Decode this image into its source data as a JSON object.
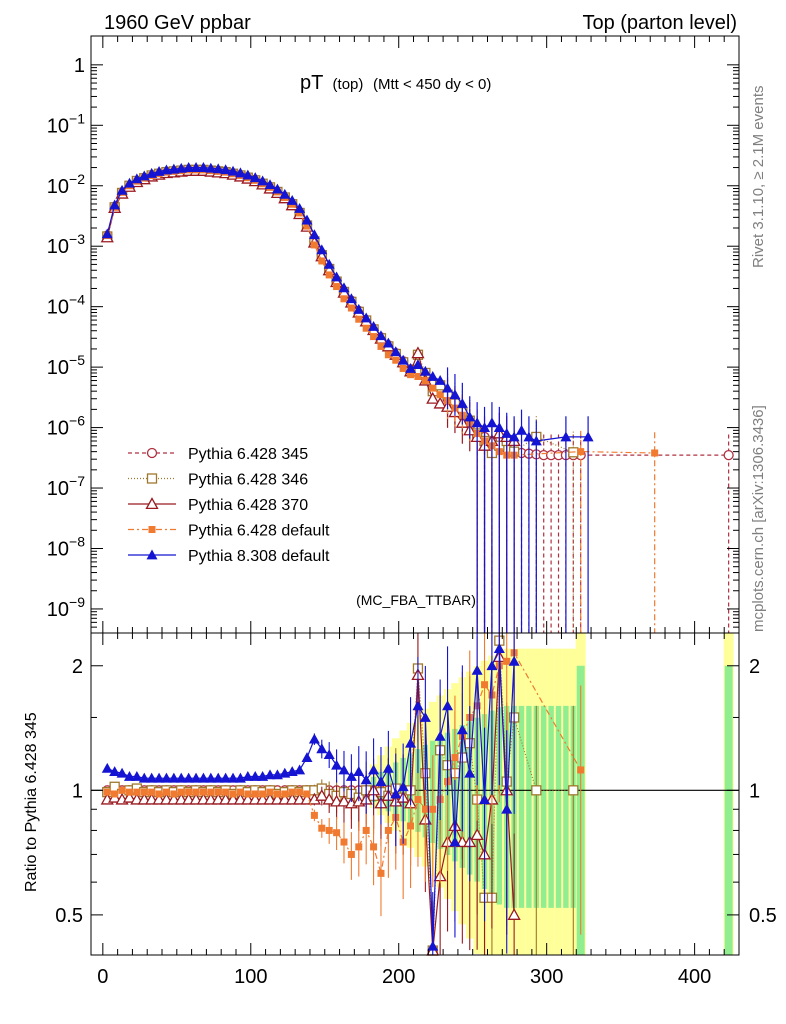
{
  "header": {
    "left": "1960 GeV ppbar",
    "right": "Top (parton level)"
  },
  "side_labels": {
    "rivet": "Rivet 3.1.10, ≥ 2.1M events",
    "source": "mcplots.cern.ch [arXiv:1306.3436]"
  },
  "analysis_tag": "(MC_FBA_TTBAR)",
  "chart_data": [
    {
      "type": "line",
      "title_main": "pT",
      "title_sub1": "(top)",
      "title_sub2": "(Mtt < 450 dy < 0)",
      "yscale": "log",
      "ylim": [
        4e-10,
        3
      ],
      "xlim": [
        -8,
        430
      ],
      "y_tick_labels": [
        "1",
        "10",
        "10",
        "10",
        "10",
        "10",
        "10",
        "10",
        "10",
        "10"
      ],
      "y_tick_exponents": [
        "",
        "−1",
        "−2",
        "−3",
        "−4",
        "−5",
        "−6",
        "−7",
        "−8",
        "−9"
      ],
      "legend_position": "middle-left",
      "series": [
        {
          "name": "Pythia 6.428 345",
          "color": "#b03040",
          "marker": "open-circle",
          "dash": "4,3",
          "x": [
            3,
            8,
            13,
            18,
            23,
            28,
            33,
            38,
            43,
            48,
            53,
            58,
            63,
            68,
            73,
            78,
            83,
            88,
            93,
            98,
            103,
            108,
            113,
            118,
            123,
            128,
            133,
            138,
            143,
            148,
            153,
            158,
            163,
            168,
            173,
            178,
            183,
            188,
            193,
            198,
            203,
            208,
            213,
            218,
            223,
            228,
            233,
            238,
            243,
            248,
            253,
            258,
            263,
            268,
            273,
            278,
            283,
            288,
            293,
            298,
            303,
            308,
            313,
            318,
            323,
            423
          ],
          "y": [
            0.0015,
            0.0045,
            0.0078,
            0.01,
            0.012,
            0.0135,
            0.015,
            0.016,
            0.017,
            0.0175,
            0.018,
            0.0185,
            0.0185,
            0.0185,
            0.018,
            0.0175,
            0.017,
            0.016,
            0.015,
            0.0138,
            0.0125,
            0.011,
            0.0095,
            0.008,
            0.0065,
            0.005,
            0.0036,
            0.0022,
            0.0012,
            0.0007,
            0.00042,
            0.00027,
            0.00018,
            0.000125,
            8.5e-05,
            6e-05,
            4.3e-05,
            3.1e-05,
            2.3e-05,
            1.7e-05,
            1.25e-05,
            9.2e-06,
            8.8e-06,
            7e-06,
            5.2e-06,
            4e-06,
            3e-06,
            2.2e-06,
            1.6e-06,
            1.2e-06,
            9e-07,
            7e-07,
            6e-07,
            5e-07,
            4.5e-07,
            4e-07,
            3.8e-07,
            3.7e-07,
            3.6e-07,
            3.5e-07,
            3.5e-07,
            3.5e-07,
            3.5e-07,
            3.5e-07,
            3.5e-07,
            3.5e-07
          ],
          "ratio": [
            1.0,
            1.0,
            1.0,
            1.0,
            1.0,
            1.0,
            1.0,
            1.0,
            1.0,
            1.0,
            1.0,
            1.0,
            1.0,
            1.0,
            1.0,
            1.0,
            1.0,
            1.0,
            1.0,
            1.0,
            1.0,
            1.0,
            1.0,
            1.0,
            1.0,
            1.0,
            1.0,
            1.0,
            1.0,
            1.0,
            1.0,
            1.0,
            1.0,
            1.0,
            1.0,
            1.0,
            1.0,
            1.0,
            1.0,
            1.0,
            1.0,
            1.0,
            1.0,
            1.0,
            1.0,
            1.0,
            1.0,
            1.0,
            1.0,
            1.0,
            1.0,
            1.0,
            1.0,
            1.0,
            1.0,
            1.0,
            1.0,
            1.0,
            1.0,
            1.0,
            1.0,
            1.0,
            1.0,
            1.0,
            1.0,
            1.0
          ]
        },
        {
          "name": "Pythia 6.428 346",
          "color": "#a0782c",
          "marker": "open-square",
          "dash": "1,2",
          "x": [
            3,
            8,
            13,
            18,
            23,
            28,
            33,
            38,
            43,
            48,
            53,
            58,
            63,
            68,
            73,
            78,
            83,
            88,
            93,
            98,
            103,
            108,
            113,
            118,
            123,
            128,
            133,
            138,
            143,
            148,
            153,
            158,
            163,
            168,
            173,
            178,
            183,
            188,
            193,
            198,
            203,
            208,
            213,
            218,
            223,
            228,
            233,
            238,
            243,
            248,
            253,
            258,
            263,
            268,
            273,
            278,
            293,
            318
          ],
          "y": [
            0.00145,
            0.0044,
            0.0076,
            0.01,
            0.012,
            0.0133,
            0.0148,
            0.0158,
            0.0168,
            0.0173,
            0.0178,
            0.0183,
            0.0183,
            0.0183,
            0.0178,
            0.0173,
            0.0168,
            0.0158,
            0.0148,
            0.0136,
            0.0123,
            0.0108,
            0.0094,
            0.0079,
            0.0064,
            0.00495,
            0.00355,
            0.0022,
            0.0012,
            0.00071,
            0.00042,
            0.00026,
            0.000175,
            0.00012,
            8.2e-05,
            5.9e-05,
            4.2e-05,
            3e-05,
            2.2e-05,
            1.65e-05,
            1.2e-05,
            9e-06,
            1.6e-05,
            8e-06,
            4e-06,
            5e-06,
            3.5e-06,
            2.5e-06,
            1.8e-06,
            1.3e-06,
            8e-07,
            6e-07,
            3.8e-07,
            5e-07,
            6e-07,
            4e-07,
            7e-07,
            3.9e-07
          ],
          "ratio": [
            0.99,
            1.02,
            0.98,
            1.0,
            1.01,
            0.99,
            1.0,
            0.99,
            1.0,
            0.99,
            1.0,
            0.99,
            1.0,
            0.99,
            1.0,
            0.99,
            1.0,
            0.98,
            1.0,
            0.99,
            1.0,
            0.99,
            1.0,
            0.98,
            0.99,
            1.0,
            0.99,
            1.0,
            1.0,
            1.01,
            0.98,
            0.97,
            0.99,
            0.98,
            0.96,
            1.0,
            0.97,
            0.99,
            0.97,
            1.01,
            0.96,
            1.0,
            1.97,
            1.1,
            0.4,
            1.25,
            1.15,
            1.1,
            1.2,
            1.3,
            0.95,
            0.55,
            0.55,
            2.3,
            1.05,
            1.5,
            1.0,
            1.0
          ]
        },
        {
          "name": "Pythia 6.428 370",
          "color": "#9a1a20",
          "marker": "open-triangle",
          "dash": "",
          "x": [
            3,
            8,
            13,
            18,
            23,
            28,
            33,
            38,
            43,
            48,
            53,
            58,
            63,
            68,
            73,
            78,
            83,
            88,
            93,
            98,
            103,
            108,
            113,
            118,
            123,
            128,
            133,
            138,
            143,
            148,
            153,
            158,
            163,
            168,
            173,
            178,
            183,
            188,
            193,
            198,
            203,
            208,
            213,
            218,
            223,
            228,
            233,
            238,
            243,
            248,
            253,
            258,
            263,
            268,
            273,
            278
          ],
          "y": [
            0.0014,
            0.0043,
            0.0074,
            0.0096,
            0.0115,
            0.0128,
            0.0142,
            0.0152,
            0.0162,
            0.0166,
            0.0171,
            0.0176,
            0.0176,
            0.0176,
            0.0171,
            0.0166,
            0.0161,
            0.0152,
            0.0142,
            0.0131,
            0.0119,
            0.0105,
            0.009,
            0.0076,
            0.0062,
            0.00475,
            0.0034,
            0.0021,
            0.00115,
            0.00068,
            0.0004,
            0.000255,
            0.00017,
            0.000117,
            8e-05,
            5.7e-05,
            4.1e-05,
            2.95e-05,
            2.2e-05,
            1.6e-05,
            1.2e-05,
            8.5e-06,
            1.7e-05,
            6e-06,
            3e-06,
            2.5e-06,
            2.2e-06,
            1.8e-06,
            1.2e-06,
            9e-07,
            7e-07,
            5e-07,
            6e-07,
            8e-07,
            7e-07,
            6e-07
          ],
          "ratio": [
            0.95,
            0.96,
            0.95,
            0.96,
            0.95,
            0.95,
            0.95,
            0.95,
            0.95,
            0.95,
            0.95,
            0.95,
            0.95,
            0.95,
            0.95,
            0.95,
            0.95,
            0.95,
            0.95,
            0.95,
            0.95,
            0.95,
            0.95,
            0.95,
            0.95,
            0.95,
            0.95,
            0.95,
            0.95,
            0.97,
            0.95,
            0.94,
            0.94,
            0.93,
            0.94,
            0.95,
            1.0,
            0.93,
            0.97,
            0.94,
            0.96,
            0.93,
            1.9,
            0.85,
            0.38,
            0.62,
            0.75,
            0.82,
            0.75,
            0.75,
            0.78,
            0.7,
            0.95,
            2.1,
            1.0,
            0.5
          ]
        },
        {
          "name": "Pythia 6.428 default",
          "color": "#f07a30",
          "marker": "filled-square",
          "dash": "6,3,2,3",
          "x": [
            3,
            8,
            13,
            18,
            23,
            28,
            33,
            38,
            43,
            48,
            53,
            58,
            63,
            68,
            73,
            78,
            83,
            88,
            93,
            98,
            103,
            108,
            113,
            118,
            123,
            128,
            133,
            138,
            143,
            148,
            153,
            158,
            163,
            168,
            173,
            178,
            183,
            188,
            193,
            198,
            203,
            208,
            213,
            218,
            223,
            228,
            233,
            238,
            243,
            248,
            253,
            258,
            263,
            268,
            273,
            278,
            323,
            373
          ],
          "y": [
            0.0015,
            0.0044,
            0.0078,
            0.01,
            0.0119,
            0.0134,
            0.0148,
            0.0158,
            0.0168,
            0.0173,
            0.0178,
            0.0183,
            0.0183,
            0.0183,
            0.0178,
            0.0173,
            0.0168,
            0.0158,
            0.0148,
            0.0136,
            0.0123,
            0.0108,
            0.0094,
            0.0079,
            0.0064,
            0.00495,
            0.00355,
            0.00215,
            0.00105,
            0.00057,
            0.000335,
            0.000215,
            0.000135,
            9.5e-05,
            6.2e-05,
            4.4e-05,
            3.2e-05,
            2.2e-05,
            1.6e-05,
            1.3e-05,
            9.5e-06,
            7.5e-06,
            7e-06,
            6e-06,
            4.5e-06,
            3.5e-06,
            2.8e-06,
            2.1e-06,
            1.6e-06,
            1.2e-06,
            8e-07,
            6e-07,
            5e-07,
            4e-07,
            3.5e-07,
            3.5e-07,
            4e-07,
            3.8e-07
          ],
          "ratio": [
            0.99,
            0.98,
            1.0,
            0.99,
            0.99,
            0.99,
            0.99,
            0.98,
            0.99,
            0.98,
            0.99,
            0.99,
            0.99,
            0.99,
            0.99,
            0.99,
            0.99,
            0.98,
            0.99,
            0.98,
            0.98,
            0.98,
            0.99,
            0.98,
            0.98,
            0.99,
            0.99,
            0.98,
            0.87,
            0.81,
            0.8,
            0.79,
            0.75,
            0.7,
            0.73,
            0.8,
            0.73,
            0.63,
            0.8,
            0.86,
            0.75,
            0.82,
            0.95,
            0.9,
            0.9,
            0.95,
            1.05,
            1.2,
            1.35,
            1.5,
            1.6,
            1.8,
            1.7,
            2.0,
            2.05,
            2.15,
            1.12,
            1.0
          ]
        },
        {
          "name": "Pythia 8.308 default",
          "color": "#1414d2",
          "marker": "filled-triangle",
          "dash": "",
          "x": [
            3,
            8,
            13,
            18,
            23,
            28,
            33,
            38,
            43,
            48,
            53,
            58,
            63,
            68,
            73,
            78,
            83,
            88,
            93,
            98,
            103,
            108,
            113,
            118,
            123,
            128,
            133,
            138,
            143,
            148,
            153,
            158,
            163,
            168,
            173,
            178,
            183,
            188,
            193,
            198,
            203,
            208,
            213,
            218,
            223,
            228,
            233,
            238,
            243,
            248,
            253,
            258,
            263,
            268,
            273,
            278,
            283,
            288,
            293,
            313,
            328
          ],
          "y": [
            0.0016,
            0.0048,
            0.0084,
            0.011,
            0.013,
            0.0145,
            0.016,
            0.0172,
            0.0182,
            0.0188,
            0.0194,
            0.02,
            0.02,
            0.02,
            0.0195,
            0.019,
            0.0184,
            0.0174,
            0.0163,
            0.015,
            0.0136,
            0.012,
            0.0104,
            0.0088,
            0.0072,
            0.0057,
            0.0042,
            0.0027,
            0.00155,
            0.00087,
            0.0005,
            0.00031,
            0.000205,
            0.000135,
            9e-05,
            6.5e-05,
            4.7e-05,
            3.3e-05,
            2.5e-05,
            1.8e-05,
            1.3e-05,
            9.5e-06,
            1.1e-05,
            8.5e-06,
            7e-06,
            6e-06,
            4.5e-06,
            3.5e-06,
            2.5e-06,
            1.5e-06,
            1.2e-06,
            1e-06,
            1.2e-06,
            1e-06,
            8e-07,
            7e-07,
            9e-07,
            7e-07,
            6e-07,
            7e-07,
            7e-07
          ],
          "ratio": [
            1.13,
            1.11,
            1.1,
            1.08,
            1.08,
            1.07,
            1.07,
            1.07,
            1.07,
            1.07,
            1.07,
            1.07,
            1.07,
            1.07,
            1.07,
            1.07,
            1.07,
            1.07,
            1.07,
            1.08,
            1.08,
            1.08,
            1.09,
            1.09,
            1.1,
            1.11,
            1.12,
            1.2,
            1.33,
            1.26,
            1.22,
            1.15,
            1.12,
            1.08,
            1.11,
            1.06,
            1.12,
            1.05,
            1.13,
            0.98,
            1.02,
            1.3,
            1.6,
            1.5,
            0.42,
            1.35,
            1.6,
            0.75,
            1.4,
            1.1,
            1.95,
            0.95,
            2.0,
            2.2,
            0.9,
            2.05
          ]
        }
      ]
    },
    {
      "type": "line",
      "title": "",
      "ylabel": "Ratio to Pythia 6.428 345",
      "yscale": "log",
      "ylim": [
        0.4,
        2.4
      ],
      "xlim": [
        -8,
        430
      ],
      "y_tick_labels": [
        "0.5",
        "1",
        "2"
      ],
      "x_tick_labels": [
        "0",
        "100",
        "200",
        "300",
        "400"
      ],
      "reference_line": 1
    }
  ]
}
